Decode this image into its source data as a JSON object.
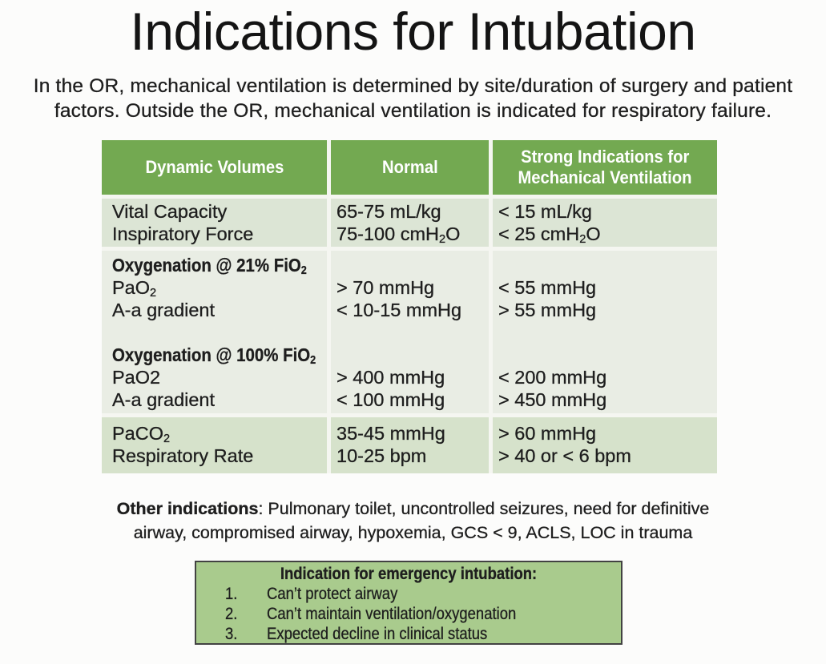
{
  "title": "Indications for Intubation",
  "intro": {
    "lines": [
      "In the OR, mechanical ventilation is determined by site/duration of surgery and patient",
      "factors. Outside the OR, mechanical ventilation is indicated for respiratory failure."
    ]
  },
  "colors": {
    "header_green": "#73a951",
    "row_light_green": "#dce5d5",
    "row_pale_green": "#e9ede4",
    "row_bottom_green": "#d6e2cb",
    "box_green": "#a9cb8d",
    "box_border": "#424242",
    "text": "#1e1e1e"
  },
  "table": {
    "header": {
      "col1": "Dynamic Volumes",
      "col2": "Normal",
      "col3_line1": "Strong Indications for",
      "col3_line2": "Mechanical Ventilation"
    },
    "sections": [
      {
        "rows": [
          {
            "label": "Vital Capacity",
            "normal": "65-75 mL/kg",
            "strong": "< 15 mL/kg"
          },
          {
            "label": "Inspiratory Force",
            "normal": "75-100 cmH₂O",
            "strong": "< 25 cmH₂O"
          }
        ]
      },
      {
        "rows": [
          {
            "label": "Oxygenation @ 21% FiO₂",
            "normal": "",
            "strong": ""
          },
          {
            "label": "PaO₂",
            "normal": "> 70 mmHg",
            "strong": "< 55 mmHg"
          },
          {
            "label": "A-a gradient",
            "normal": "< 10-15 mmHg",
            "strong": "> 55 mmHg"
          },
          {
            "label": "",
            "normal": "",
            "strong": ""
          },
          {
            "label": "Oxygenation @ 100% FiO₂",
            "normal": "",
            "strong": ""
          },
          {
            "label": "PaO2",
            "normal": "> 400 mmHg",
            "strong": "< 200 mmHg"
          },
          {
            "label": "A-a gradient",
            "normal": "< 100 mmHg",
            "strong": "> 450 mmHg"
          }
        ]
      },
      {
        "rows": [
          {
            "label": "PaCO₂",
            "normal": "35-45 mmHg",
            "strong": "> 60 mmHg"
          },
          {
            "label": "Respiratory Rate",
            "normal": "10-25 bpm",
            "strong": "> 40 or < 6 bpm"
          }
        ]
      }
    ]
  },
  "other_indications": {
    "prefix": "Other indications",
    "line1_rest": ": Pulmonary toilet, uncontrolled seizures, need for definitive",
    "line2": "airway, compromised airway, hypoxemia, GCS < 9, ACLS, LOC in trauma"
  },
  "emergency_box": {
    "title": "Indication for emergency intubation:",
    "items": [
      {
        "num": "1.",
        "text": "Can’t protect airway"
      },
      {
        "num": "2.",
        "text": "Can’t maintain ventilation/oxygenation"
      },
      {
        "num": "3.",
        "text": "Expected decline in clinical status"
      }
    ]
  }
}
